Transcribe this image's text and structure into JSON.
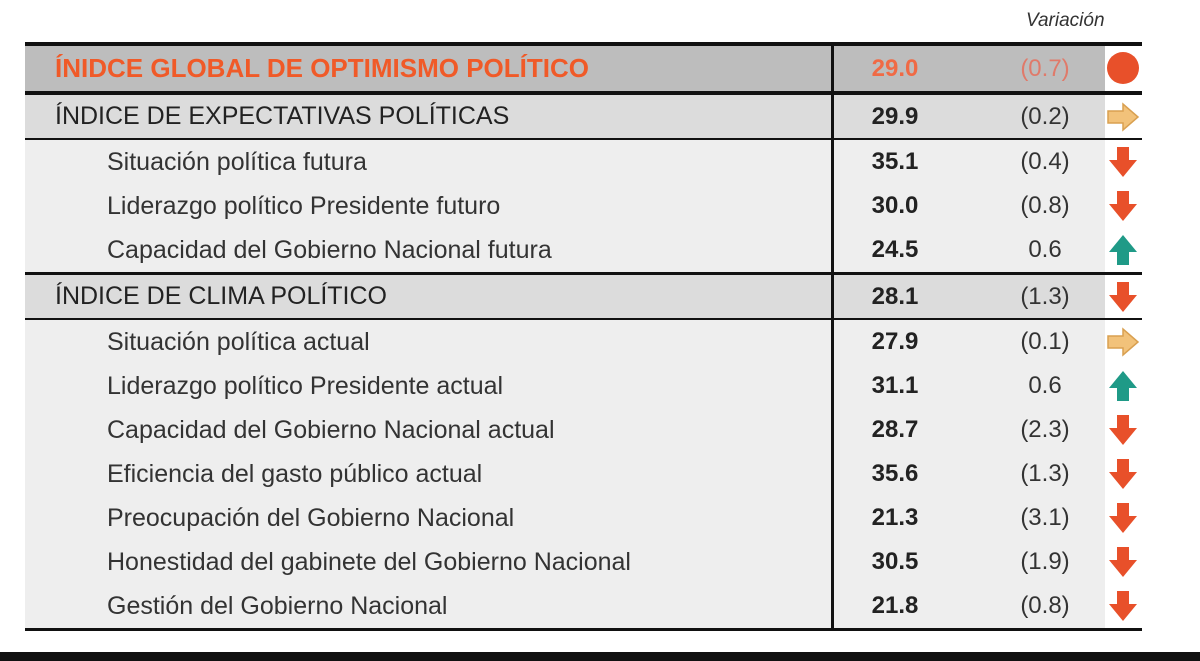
{
  "header": {
    "variation_label": "Variación"
  },
  "colors": {
    "down": "#e8502a",
    "up": "#1f9a87",
    "flat": "#f2c27a",
    "global_text": "#f05a28"
  },
  "rows": [
    {
      "type": "global",
      "label": "ÍNIDCE GLOBAL DE OPTIMISMO POLÍTICO",
      "value": "29.0",
      "variation": "(0.7)",
      "icon": "circle-icon"
    },
    {
      "type": "section",
      "label": "ÍNDICE DE EXPECTATIVAS POLÍTICAS",
      "value": "29.9",
      "variation": "(0.2)",
      "icon": "arrow-right-icon"
    },
    {
      "type": "sub",
      "label": "Situación política futura",
      "value": "35.1",
      "variation": "(0.4)",
      "icon": "arrow-down-icon"
    },
    {
      "type": "sub",
      "label": "Liderazgo político Presidente futuro",
      "value": "30.0",
      "variation": "(0.8)",
      "icon": "arrow-down-icon"
    },
    {
      "type": "sub",
      "label": "Capacidad del Gobierno Nacional futura",
      "value": "24.5",
      "variation": "0.6",
      "icon": "arrow-up-icon"
    },
    {
      "type": "section",
      "label": "ÍNDICE DE CLIMA POLÍTICO",
      "value": "28.1",
      "variation": "(1.3)",
      "icon": "arrow-down-icon"
    },
    {
      "type": "sub",
      "label": "Situación política actual",
      "value": "27.9",
      "variation": "(0.1)",
      "icon": "arrow-right-icon"
    },
    {
      "type": "sub",
      "label": "Liderazgo político Presidente actual",
      "value": "31.1",
      "variation": "0.6",
      "icon": "arrow-up-icon"
    },
    {
      "type": "sub",
      "label": "Capacidad del Gobierno Nacional actual",
      "value": "28.7",
      "variation": "(2.3)",
      "icon": "arrow-down-icon"
    },
    {
      "type": "sub",
      "label": "Eficiencia del gasto público actual",
      "value": "35.6",
      "variation": "(1.3)",
      "icon": "arrow-down-icon"
    },
    {
      "type": "sub",
      "label": "Preocupación del Gobierno Nacional",
      "value": "21.3",
      "variation": "(3.1)",
      "icon": "arrow-down-icon"
    },
    {
      "type": "sub",
      "label": "Honestidad del gabinete del Gobierno Nacional",
      "value": "30.5",
      "variation": "(1.9)",
      "icon": "arrow-down-icon"
    },
    {
      "type": "sub",
      "label": "Gestión del Gobierno Nacional",
      "value": "21.8",
      "variation": "(0.8)",
      "icon": "arrow-down-icon"
    }
  ]
}
